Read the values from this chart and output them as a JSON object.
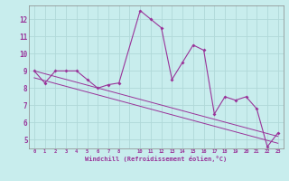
{
  "xlabel": "Windchill (Refroidissement éolien,°C)",
  "background_color": "#c8eded",
  "grid_color": "#b0d8d8",
  "line_color": "#993399",
  "x_hours": [
    0,
    1,
    2,
    3,
    4,
    5,
    6,
    7,
    8,
    10,
    11,
    12,
    13,
    14,
    15,
    16,
    17,
    18,
    19,
    20,
    21,
    22,
    23
  ],
  "temp_data": [
    9.0,
    8.3,
    9.0,
    9.0,
    9.0,
    8.5,
    8.0,
    8.2,
    8.3,
    12.5,
    12.0,
    11.5,
    8.5,
    9.5,
    10.5,
    10.2,
    6.5,
    7.5,
    7.3,
    7.5,
    6.8,
    4.6,
    5.4
  ],
  "reg_line_x": [
    0,
    23
  ],
  "reg_line_y": [
    9.0,
    5.2
  ],
  "reg_line2_x": [
    0,
    23
  ],
  "reg_line2_y": [
    8.6,
    4.8
  ],
  "xlim": [
    -0.5,
    23.5
  ],
  "ylim": [
    4.5,
    12.8
  ],
  "ytick_values": [
    5,
    6,
    7,
    8,
    9,
    10,
    11,
    12
  ]
}
